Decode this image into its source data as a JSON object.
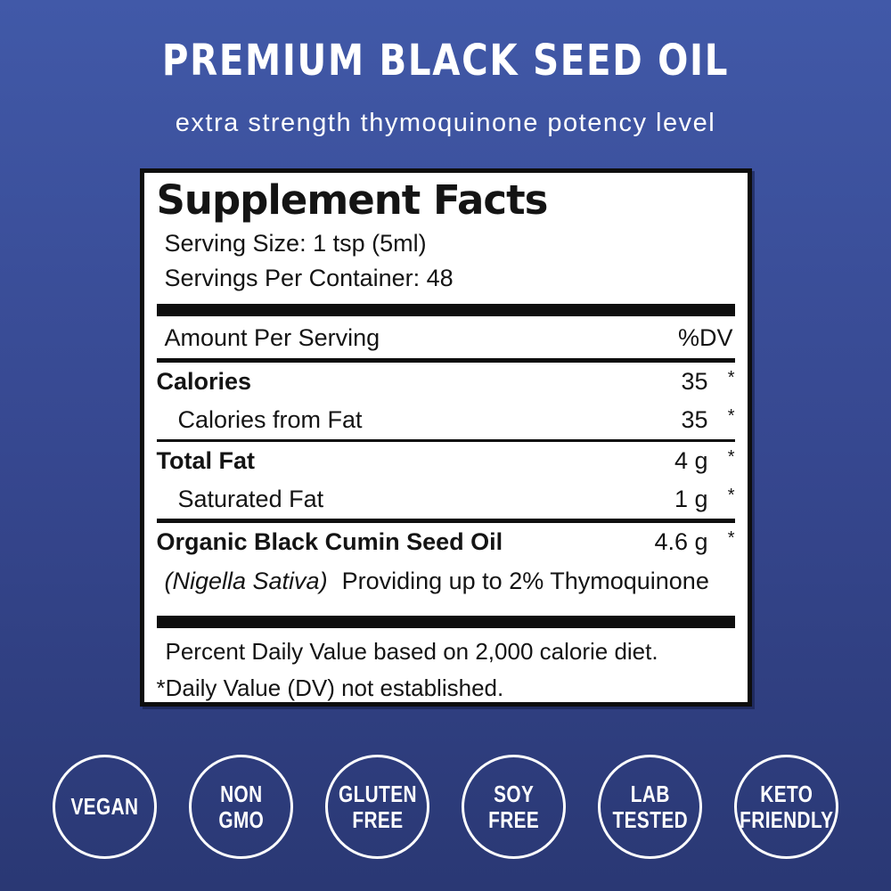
{
  "colors": {
    "background_top": "#4159a8",
    "background_middle": "#36478f",
    "background_bottom": "#2a3874",
    "panel_background": "#ffffff",
    "panel_ink": "#0e0e0e",
    "header_text": "#ffffff",
    "badge_outline": "#ffffff"
  },
  "header": {
    "title": "PREMIUM BLACK SEED OIL",
    "subtitle": "extra strength thymoquinone potency level"
  },
  "panel": {
    "title": "Supplement Facts",
    "serving_size": "Serving Size: 1 tsp (5ml)",
    "servings_per_container": "Servings Per Container: 48",
    "columns": {
      "amount": "Amount Per Serving",
      "dv": "%DV"
    },
    "rows": [
      {
        "name": "Calories",
        "value": "35",
        "dv": "*"
      },
      {
        "name": "Calories from Fat",
        "value": "35",
        "dv": "*"
      },
      {
        "name": "Total Fat",
        "value": "4 g",
        "dv": "*"
      },
      {
        "name": "Saturated Fat",
        "value": "1 g",
        "dv": "*"
      },
      {
        "name": "Organic Black Cumin Seed Oil",
        "value": "4.6 g",
        "dv": "*"
      }
    ],
    "botanical": {
      "latin": "(Nigella Sativa)",
      "description": "Providing up to 2% Thymoquinone"
    },
    "footnotes": [
      "Percent Daily Value based on 2,000 calorie diet.",
      "*Daily Value (DV) not established."
    ]
  },
  "badges": [
    {
      "line1": "VEGAN",
      "line2": ""
    },
    {
      "line1": "NON",
      "line2": "GMO"
    },
    {
      "line1": "GLUTEN",
      "line2": "FREE"
    },
    {
      "line1": "SOY",
      "line2": "FREE"
    },
    {
      "line1": "LAB",
      "line2": "TESTED"
    },
    {
      "line1": "KETO",
      "line2": "FRIENDLY"
    }
  ]
}
